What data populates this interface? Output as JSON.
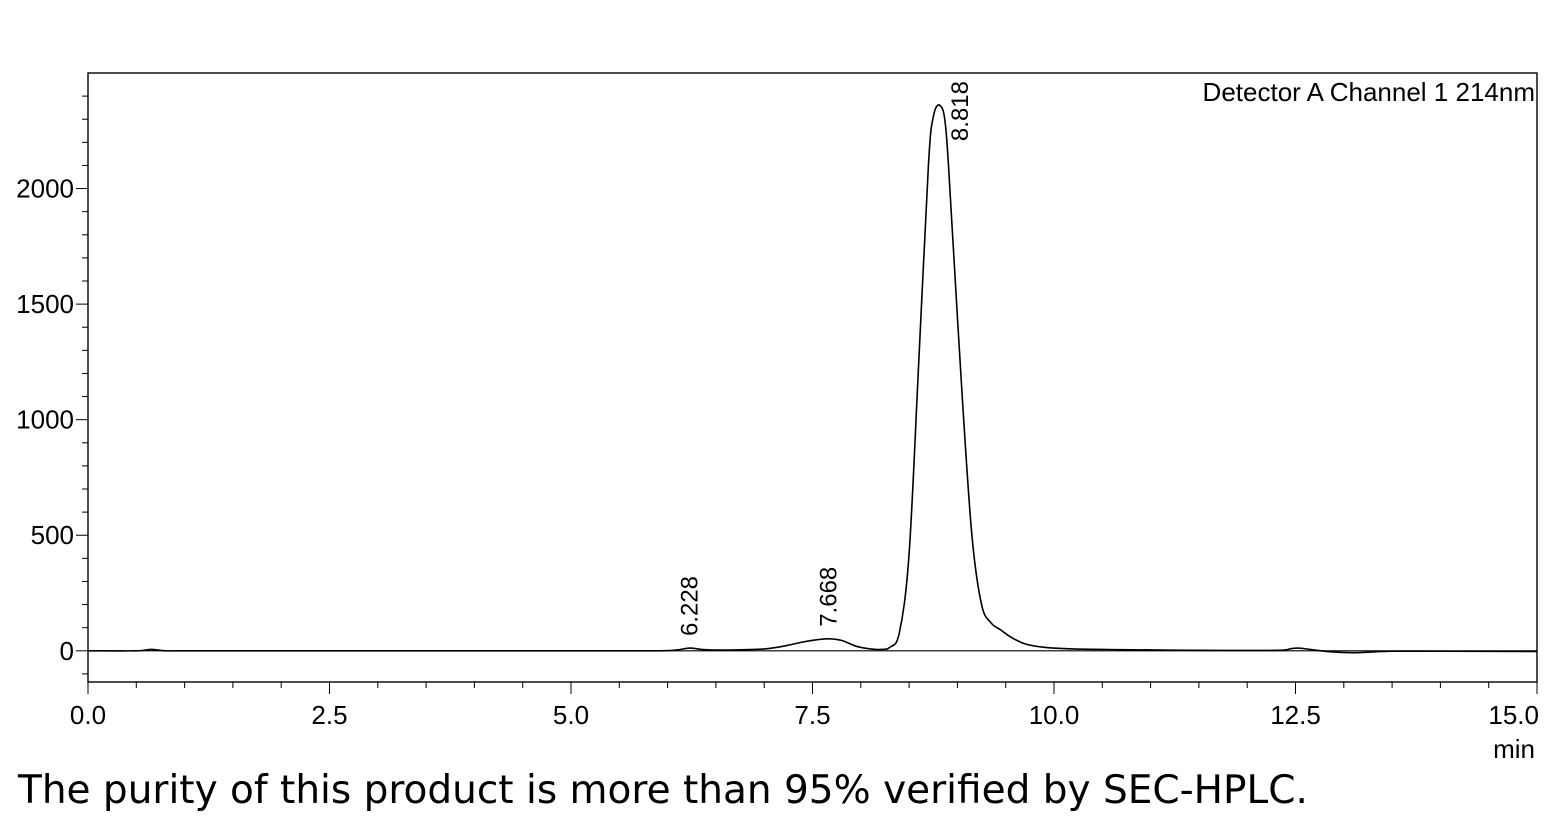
{
  "chart_data": {
    "type": "line",
    "title": "",
    "channel_label": "Detector A Channel 1 214nm",
    "xlabel": "min",
    "ylabel": "",
    "xlim": [
      0.0,
      15.0
    ],
    "ylim": [
      -135,
      2500
    ],
    "x_ticks": [
      0.0,
      2.5,
      5.0,
      7.5,
      10.0,
      12.5,
      15.0
    ],
    "x_tick_labels": [
      "0.0",
      "2.5",
      "5.0",
      "7.5",
      "10.0",
      "12.5",
      "15.0"
    ],
    "y_ticks": [
      0,
      500,
      1000,
      1500,
      2000
    ],
    "y_tick_labels": [
      "0",
      "500",
      "1000",
      "1500",
      "2000"
    ],
    "grid": false,
    "series": [
      {
        "x": [
          0.0,
          0.5,
          0.65,
          0.8,
          1.0,
          2.5,
          5.0,
          5.9,
          6.1,
          6.228,
          6.35,
          6.5,
          6.8,
          7.0,
          7.2,
          7.4,
          7.55,
          7.668,
          7.8,
          7.95,
          8.1,
          8.2,
          8.3,
          8.4,
          8.5,
          8.6,
          8.7,
          8.75,
          8.818,
          8.88,
          8.95,
          9.05,
          9.15,
          9.25,
          9.35,
          9.45,
          9.55,
          9.7,
          9.9,
          10.2,
          10.7,
          11.5,
          12.3,
          12.45,
          12.53,
          12.65,
          12.85,
          13.1,
          13.5,
          14.0,
          15.0
        ],
        "y": [
          0,
          0,
          6,
          0,
          0,
          0,
          0,
          0,
          4,
          12,
          6,
          3,
          5,
          8,
          20,
          38,
          48,
          52,
          45,
          20,
          8,
          6,
          15,
          80,
          420,
          1250,
          2100,
          2310,
          2360,
          2260,
          1800,
          1100,
          500,
          200,
          120,
          90,
          60,
          30,
          15,
          8,
          5,
          2,
          2,
          9,
          12,
          6,
          -4,
          -8,
          -2,
          -2,
          -3
        ]
      }
    ],
    "peaks": [
      {
        "x": 6.228,
        "label": "6.228"
      },
      {
        "x": 7.668,
        "label": "7.668"
      },
      {
        "x": 8.818,
        "label": "8.818"
      }
    ]
  },
  "caption": "The purity of this product is more than 95% verified by SEC-HPLC."
}
